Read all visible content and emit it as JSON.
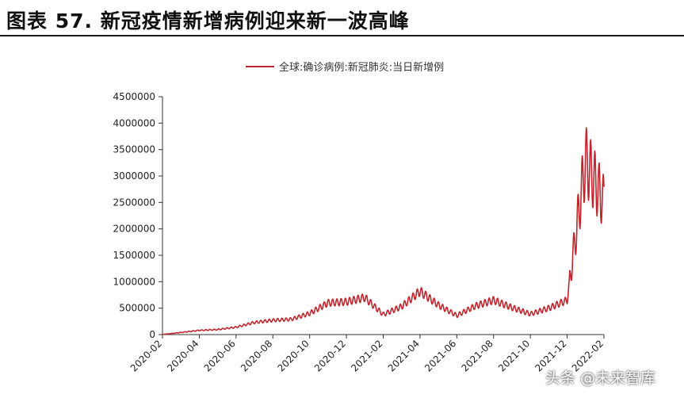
{
  "figure_title": "图表 57. 新冠疫情新增病例迎来新一波高峰",
  "watermark": "头条 @未来智库",
  "chart_data": {
    "type": "line",
    "title": "",
    "xlabel": "",
    "ylabel": "",
    "legend_position": "top",
    "grid": false,
    "ylim": [
      0,
      4500000
    ],
    "yticks": [
      0,
      500000,
      1000000,
      1500000,
      2000000,
      2500000,
      3000000,
      3500000,
      4000000,
      4500000
    ],
    "ytick_labels": [
      "0",
      "500000",
      "1000000",
      "1500000",
      "2000000",
      "2500000",
      "3000000",
      "3500000",
      "4000000",
      "4500000"
    ],
    "xlim": [
      "2020-02",
      "2022-02"
    ],
    "xtick_labels": [
      "2020-02",
      "2020-04",
      "2020-06",
      "2020-08",
      "2020-10",
      "2020-12",
      "2021-02",
      "2021-04",
      "2021-06",
      "2021-08",
      "2021-10",
      "2021-12",
      "2022-02"
    ],
    "series": [
      {
        "name": "全球:确诊病例:新冠肺炎:当日新增例",
        "color": "#c0262d",
        "x": [
          "2020-02",
          "2020-03",
          "2020-04",
          "2020-05",
          "2020-06",
          "2020-07",
          "2020-08",
          "2020-09",
          "2020-10",
          "2020-11",
          "2020-12",
          "2021-01",
          "2021-02",
          "2021-03",
          "2021-04",
          "2021-05",
          "2021-06",
          "2021-07",
          "2021-08",
          "2021-09",
          "2021-10",
          "2021-11",
          "2021-12",
          "2022-01",
          "2022-02"
        ],
        "values": [
          2000,
          40000,
          80000,
          95000,
          140000,
          230000,
          270000,
          290000,
          400000,
          600000,
          620000,
          700000,
          380000,
          530000,
          820000,
          560000,
          360000,
          540000,
          650000,
          510000,
          390000,
          500000,
          650000,
          3300000,
          2500000
        ]
      }
    ]
  }
}
